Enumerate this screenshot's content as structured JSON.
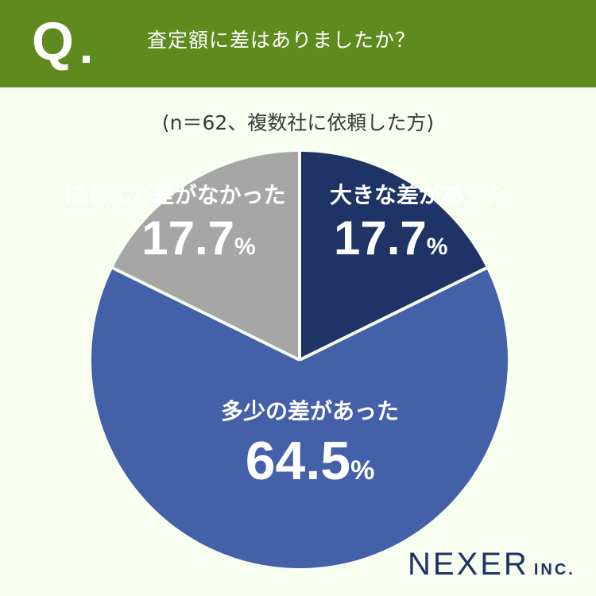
{
  "header": {
    "q_mark": "Q",
    "question": "査定額に差はありましたか？"
  },
  "subtitle": "(n＝62、複数社に依頼した方)",
  "colors": {
    "header_bg": "#5e8a1e",
    "page_bg": "#f7fdef",
    "large_diff": "#1e3366",
    "some_diff": "#4360a8",
    "no_diff": "#a5a6a5",
    "divider": "#f7fdef"
  },
  "chart_data": {
    "type": "pie",
    "title": "査定額に差はありましたか？",
    "slices": [
      {
        "label": "大きな差があった",
        "value": 17.7,
        "value_text": "17.7",
        "color": "#1e3366"
      },
      {
        "label": "多少の差があった",
        "value": 64.5,
        "value_text": "64.5",
        "color": "#4360a8"
      },
      {
        "label": "ほとんど差がなかった",
        "value": 17.7,
        "value_text": "17.7",
        "color": "#a5a6a5"
      }
    ],
    "percent_symbol": "%",
    "start_angle": "12 o'clock",
    "direction": "clockwise"
  },
  "logo": {
    "main": "NEXER",
    "sub": "INC."
  }
}
